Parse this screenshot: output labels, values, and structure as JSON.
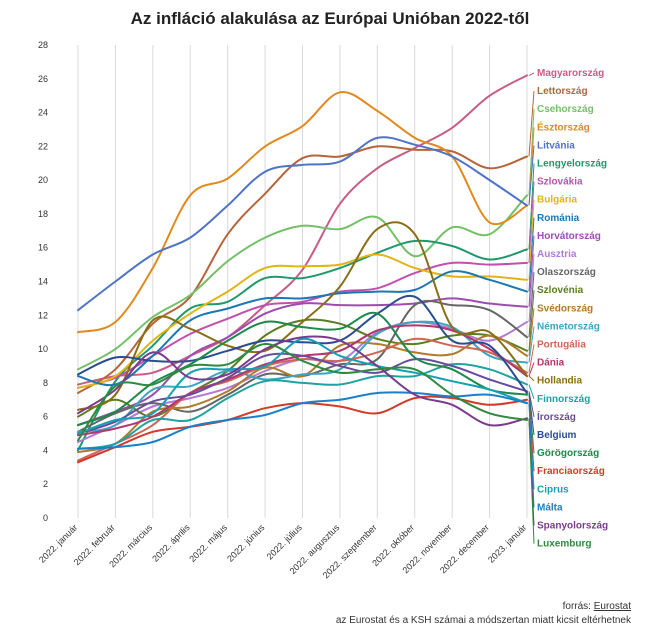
{
  "chart_data": {
    "type": "line",
    "title": "Az infláció alakulása az Európai Unióban 2022-től",
    "xlabel": "",
    "ylabel": "",
    "ylim": [
      0,
      28
    ],
    "yticks": [
      0,
      2,
      4,
      6,
      8,
      10,
      12,
      14,
      16,
      18,
      20,
      22,
      24,
      26,
      28
    ],
    "grid": "vertical",
    "x": [
      "2022. január",
      "2022. február",
      "2022. március",
      "2022. április",
      "2022. május",
      "2022. június",
      "2022. július",
      "2022. augusztus",
      "2022. szeptember",
      "2022. október",
      "2022. november",
      "2022. december",
      "2023. január"
    ],
    "series": [
      {
        "name": "Magyarország",
        "color": "#c95c86",
        "values": [
          7.9,
          8.4,
          8.6,
          9.6,
          10.7,
          12.6,
          14.7,
          18.6,
          20.7,
          21.9,
          23.1,
          25.0,
          26.2
        ]
      },
      {
        "name": "Lettország",
        "color": "#b5653a",
        "values": [
          7.4,
          8.8,
          11.5,
          13.1,
          16.8,
          19.2,
          21.3,
          21.4,
          22.0,
          21.8,
          21.7,
          20.7,
          21.4
        ]
      },
      {
        "name": "Csehország",
        "color": "#74c068",
        "values": [
          8.8,
          10.0,
          11.9,
          13.2,
          15.2,
          16.6,
          17.3,
          17.1,
          17.8,
          15.5,
          17.2,
          16.8,
          19.1
        ]
      },
      {
        "name": "Észtország",
        "color": "#e08a1e",
        "values": [
          11.0,
          11.6,
          14.8,
          19.1,
          20.1,
          22.0,
          23.2,
          25.2,
          24.1,
          22.5,
          21.4,
          17.5,
          18.5
        ]
      },
      {
        "name": "Litvánia",
        "color": "#4f73c6",
        "values": [
          12.3,
          14.0,
          15.6,
          16.6,
          18.5,
          20.5,
          20.9,
          21.1,
          22.5,
          22.1,
          21.4,
          20.0,
          18.5
        ]
      },
      {
        "name": "Lengyelország",
        "color": "#1e9a6a",
        "values": [
          4.0,
          8.1,
          10.2,
          12.4,
          12.8,
          14.2,
          14.2,
          14.8,
          15.7,
          16.4,
          16.1,
          15.3,
          15.9
        ]
      },
      {
        "name": "Szlovákia",
        "color": "#c050b0",
        "values": [
          7.7,
          8.3,
          9.6,
          10.9,
          11.8,
          12.6,
          12.8,
          13.4,
          13.6,
          14.5,
          15.1,
          15.0,
          15.1
        ]
      },
      {
        "name": "Bulgária",
        "color": "#e3b416",
        "values": [
          7.7,
          8.4,
          10.5,
          12.1,
          13.4,
          14.8,
          14.9,
          15.0,
          15.6,
          14.8,
          14.3,
          14.3,
          14.1
        ]
      },
      {
        "name": "Románia",
        "color": "#1b78b0",
        "values": [
          8.4,
          7.9,
          9.6,
          11.7,
          12.4,
          13.0,
          13.0,
          13.3,
          13.4,
          13.5,
          14.6,
          14.1,
          13.4
        ]
      },
      {
        "name": "Horvátország",
        "color": "#9c4db0",
        "values": [
          5.5,
          6.3,
          7.3,
          9.6,
          10.7,
          12.1,
          12.7,
          12.6,
          12.6,
          12.7,
          13.0,
          12.7,
          12.5
        ]
      },
      {
        "name": "Ausztria",
        "color": "#b07ad6",
        "values": [
          4.5,
          5.5,
          6.6,
          7.1,
          7.7,
          8.7,
          9.4,
          9.3,
          11.0,
          11.6,
          11.2,
          10.5,
          11.6
        ]
      },
      {
        "name": "Olaszország",
        "color": "#666666",
        "values": [
          5.1,
          6.2,
          6.8,
          6.3,
          7.3,
          8.5,
          8.4,
          9.1,
          9.4,
          12.6,
          12.6,
          12.3,
          10.7
        ]
      },
      {
        "name": "Szlovénia",
        "color": "#5a7d22",
        "values": [
          6.0,
          7.0,
          6.0,
          7.4,
          8.7,
          10.8,
          11.7,
          11.5,
          10.6,
          10.3,
          10.8,
          10.8,
          9.9
        ]
      },
      {
        "name": "Svédország",
        "color": "#b07a2a",
        "values": [
          3.9,
          4.4,
          6.3,
          6.6,
          7.5,
          8.9,
          8.4,
          10.2,
          10.3,
          9.8,
          9.7,
          10.8,
          9.6
        ]
      },
      {
        "name": "Németország",
        "color": "#3aa6c0",
        "values": [
          5.1,
          5.5,
          7.6,
          7.8,
          8.7,
          8.2,
          8.5,
          8.8,
          10.9,
          11.6,
          11.3,
          9.6,
          9.2
        ]
      },
      {
        "name": "Portugália",
        "color": "#d06555",
        "values": [
          3.4,
          4.4,
          5.5,
          7.4,
          8.1,
          9.0,
          9.4,
          9.3,
          9.8,
          10.6,
          10.2,
          9.8,
          8.6
        ]
      },
      {
        "name": "Dánia",
        "color": "#b4366e",
        "values": [
          4.9,
          5.3,
          6.0,
          7.4,
          8.2,
          9.1,
          9.6,
          9.9,
          11.1,
          11.4,
          11.1,
          10.0,
          8.4
        ]
      },
      {
        "name": "Hollandia",
        "color": "#8a6d14",
        "values": [
          6.4,
          7.3,
          11.7,
          11.2,
          10.2,
          9.9,
          11.6,
          13.7,
          17.1,
          16.8,
          11.3,
          11.0,
          8.4
        ]
      },
      {
        "name": "Finnország",
        "color": "#1fa2a2",
        "values": [
          4.1,
          4.4,
          5.8,
          5.8,
          7.1,
          8.1,
          8.0,
          7.9,
          8.4,
          8.4,
          9.1,
          8.8,
          7.9
        ]
      },
      {
        "name": "Írország",
        "color": "#6a4c9c",
        "values": [
          5.0,
          5.7,
          6.9,
          7.3,
          8.3,
          9.6,
          9.6,
          9.0,
          8.6,
          9.4,
          9.0,
          8.2,
          7.5
        ]
      },
      {
        "name": "Belgium",
        "color": "#2b4d8f",
        "values": [
          8.5,
          9.5,
          9.3,
          9.3,
          9.9,
          10.5,
          10.4,
          10.5,
          12.1,
          13.1,
          10.5,
          10.2,
          7.4
        ]
      },
      {
        "name": "Görögország",
        "color": "#1b8a4a",
        "values": [
          5.5,
          6.3,
          8.0,
          9.1,
          10.5,
          11.6,
          11.3,
          11.2,
          12.1,
          9.5,
          8.8,
          7.6,
          7.3
        ]
      },
      {
        "name": "Franciaország",
        "color": "#d23a2a",
        "values": [
          3.3,
          4.2,
          5.1,
          5.4,
          5.8,
          6.5,
          6.8,
          6.6,
          6.2,
          7.1,
          7.1,
          6.7,
          7.0
        ]
      },
      {
        "name": "Ciprus",
        "color": "#16a0b4",
        "values": [
          5.0,
          5.8,
          6.2,
          8.6,
          8.8,
          9.0,
          10.6,
          9.6,
          9.0,
          8.6,
          8.1,
          7.6,
          6.8
        ]
      },
      {
        "name": "Málta",
        "color": "#1a80c8",
        "values": [
          4.1,
          4.2,
          4.5,
          5.4,
          5.8,
          6.1,
          6.8,
          7.0,
          7.4,
          7.4,
          7.2,
          7.3,
          6.8
        ]
      },
      {
        "name": "Spanyolország",
        "color": "#7a3b8e",
        "values": [
          6.2,
          7.6,
          9.8,
          8.3,
          8.5,
          10.0,
          10.7,
          10.5,
          9.0,
          7.3,
          6.7,
          5.5,
          5.9
        ]
      },
      {
        "name": "Luxemburg",
        "color": "#2e8a3e",
        "values": [
          4.6,
          7.8,
          7.9,
          9.0,
          9.1,
          10.3,
          9.3,
          8.6,
          8.8,
          8.8,
          7.3,
          6.2,
          5.8
        ]
      }
    ]
  },
  "source": {
    "prefix": "forrás: ",
    "link": "Eurostat",
    "note": "az Eurostat és a KSH számai a módszertan miatt kicsit eltérhetnek"
  }
}
